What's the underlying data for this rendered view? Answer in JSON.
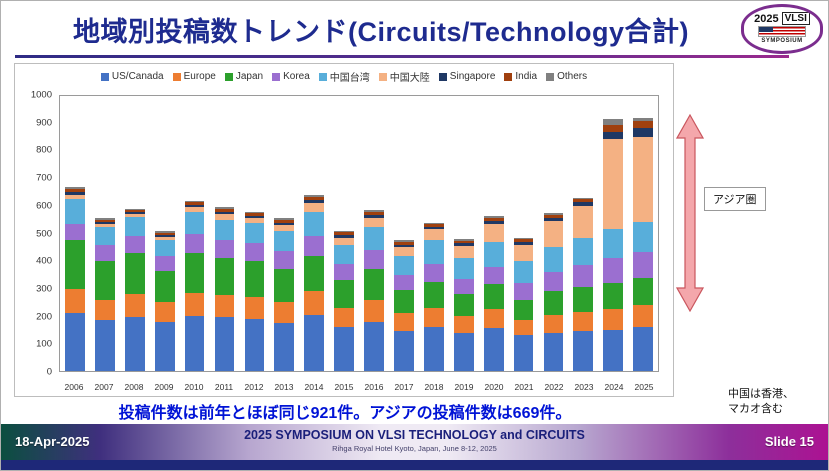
{
  "slide": {
    "title": "地域別投稿数トレンド(Circuits/Technology合計)",
    "message": "投稿件数は前年とほぼ同じ921件。アジアの投稿件数は669件。",
    "note_line1": "中国は香港、",
    "note_line2": "マカオ含む",
    "asia_label": "アジア圏"
  },
  "logo": {
    "year": "2025",
    "name": "VLSI",
    "subtitle": "SYMPOSIUM"
  },
  "footer": {
    "date": "18-Apr-2025",
    "conference": "2025 SYMPOSIUM ON VLSI TECHNOLOGY and CIRCUITS",
    "venue": "Rihga Royal Hotel Kyoto, Japan, June 8-12, 2025",
    "slide_number": "Slide 15"
  },
  "chart_data": {
    "type": "bar",
    "stacked": true,
    "title": "",
    "xlabel": "",
    "ylabel": "",
    "grid": false,
    "legend_position": "top",
    "ylim": [
      0,
      1000
    ],
    "yticks": [
      0,
      100,
      200,
      300,
      400,
      500,
      600,
      700,
      800,
      900,
      1000
    ],
    "categories": [
      "2006",
      "2007",
      "2008",
      "2009",
      "2010",
      "2011",
      "2012",
      "2013",
      "2014",
      "2015",
      "2016",
      "2017",
      "2018",
      "2019",
      "2020",
      "2021",
      "2022",
      "2023",
      "2024",
      "2025"
    ],
    "series": [
      {
        "name": "US/Canada",
        "color": "#4472C4",
        "values": [
          210,
          185,
          195,
          180,
          200,
          195,
          190,
          175,
          205,
          160,
          180,
          145,
          160,
          140,
          155,
          130,
          140,
          145,
          150,
          160
        ]
      },
      {
        "name": "Europe",
        "color": "#ED7D31",
        "values": [
          90,
          75,
          85,
          70,
          85,
          80,
          80,
          75,
          85,
          70,
          80,
          65,
          70,
          60,
          70,
          55,
          65,
          70,
          75,
          80
        ]
      },
      {
        "name": "Japan",
        "color": "#2CA02C",
        "values": [
          175,
          140,
          150,
          115,
          145,
          135,
          130,
          120,
          130,
          100,
          110,
          85,
          95,
          80,
          90,
          75,
          85,
          90,
          95,
          100
        ]
      },
      {
        "name": "Korea",
        "color": "#9B6FD0",
        "values": [
          60,
          60,
          60,
          55,
          70,
          65,
          65,
          65,
          70,
          60,
          70,
          55,
          65,
          55,
          65,
          60,
          70,
          80,
          90,
          92
        ]
      },
      {
        "name": "中国台湾",
        "color": "#58AEDA",
        "values": [
          90,
          65,
          70,
          55,
          80,
          75,
          75,
          75,
          90,
          70,
          85,
          70,
          85,
          75,
          90,
          80,
          90,
          100,
          105,
          110
        ]
      },
      {
        "name": "中国大陸",
        "color": "#F4B183",
        "values": [
          15,
          10,
          10,
          12,
          15,
          20,
          15,
          20,
          30,
          25,
          30,
          30,
          40,
          45,
          65,
          60,
          95,
          115,
          330,
          310
        ]
      },
      {
        "name": "Singapore",
        "color": "#1F3864",
        "values": [
          12,
          8,
          8,
          8,
          10,
          10,
          10,
          10,
          12,
          10,
          12,
          10,
          10,
          10,
          12,
          10,
          12,
          15,
          25,
          30
        ]
      },
      {
        "name": "India",
        "color": "#A0400E",
        "values": [
          10,
          7,
          7,
          8,
          9,
          9,
          9,
          9,
          11,
          9,
          10,
          9,
          10,
          9,
          11,
          9,
          11,
          12,
          25,
          27
        ]
      },
      {
        "name": "Others",
        "color": "#808080",
        "values": [
          8,
          5,
          5,
          7,
          6,
          6,
          6,
          6,
          7,
          6,
          8,
          6,
          5,
          6,
          7,
          6,
          7,
          3,
          20,
          12
        ]
      }
    ],
    "totals": [
      670,
      555,
      590,
      510,
      620,
      595,
      580,
      555,
      640,
      510,
      585,
      475,
      540,
      480,
      565,
      485,
      575,
      630,
      915,
      921
    ]
  }
}
